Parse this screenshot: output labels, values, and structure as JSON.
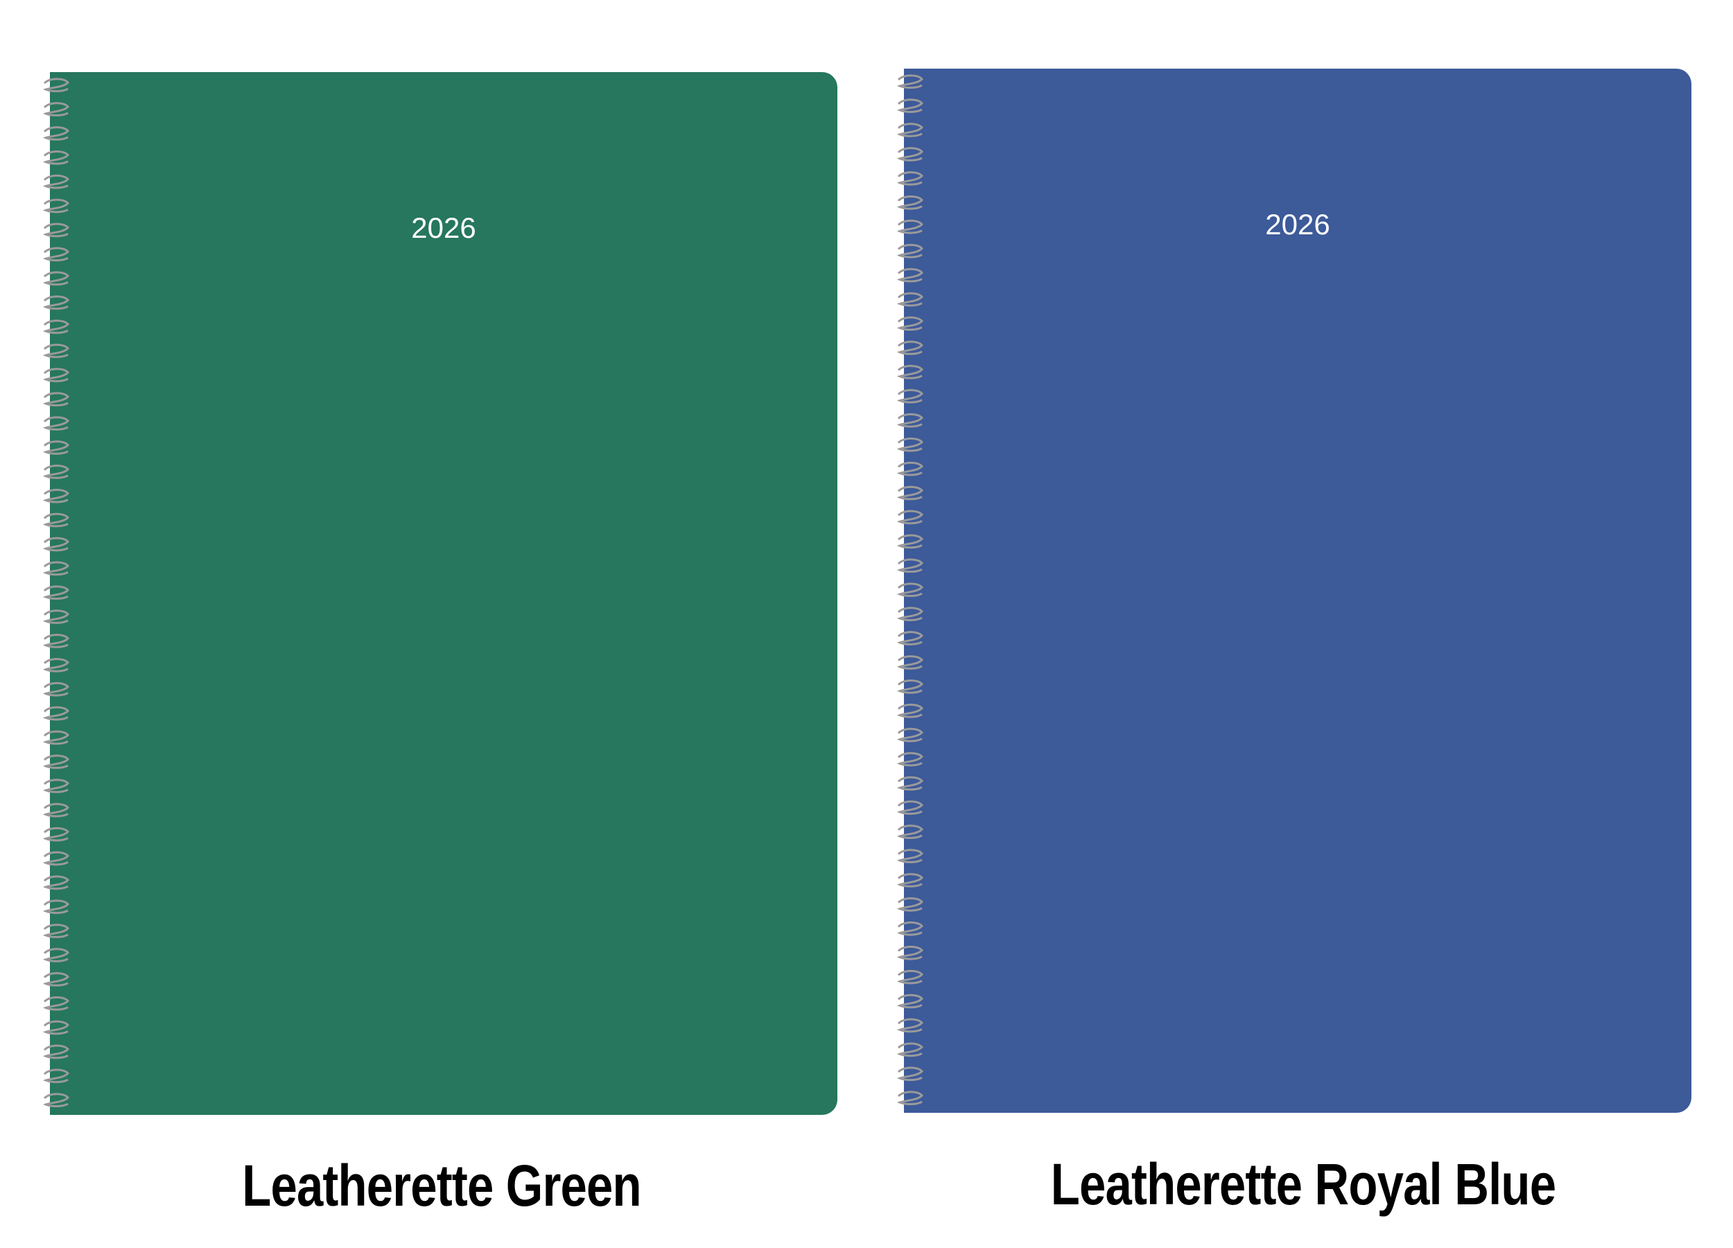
{
  "covers": [
    {
      "year": "2026",
      "label": "Leatherette Green"
    },
    {
      "year": "2026",
      "label": "Leatherette Royal Blue"
    }
  ]
}
